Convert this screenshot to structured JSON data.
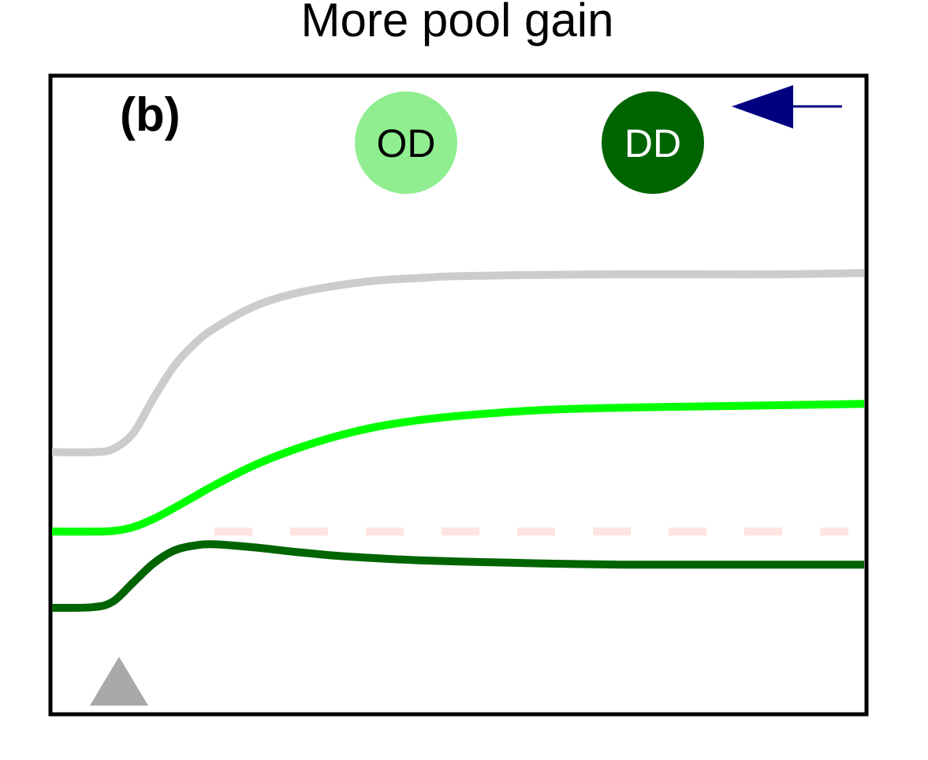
{
  "chart_data": {
    "type": "line",
    "title": "More pool gain",
    "panel_label": "(b)",
    "xlabel": "",
    "ylabel": "",
    "grid": false,
    "legend": "none",
    "badges": [
      {
        "label": "OD",
        "fill": "#90EE90",
        "text_color": "#000000"
      },
      {
        "label": "DD",
        "fill": "#006400",
        "text_color": "#ffffff"
      }
    ],
    "arrow": {
      "direction": "left",
      "color": "#000080"
    },
    "stimulus_marker": {
      "shape": "triangle",
      "color": "#A9A9A9",
      "x": 1.65
    },
    "xlim": [
      0,
      20
    ],
    "ylim": [
      0,
      10
    ],
    "reference_line": {
      "y": 2.85,
      "color": "#FFE4E1",
      "style": "dashed",
      "x_start": 4
    },
    "series": [
      {
        "color": "#CCCCCC",
        "x": [
          0,
          1,
          1.5,
          2,
          2.5,
          3,
          3.5,
          4,
          5,
          6,
          7,
          8,
          9,
          10,
          12,
          14,
          16,
          18,
          20
        ],
        "values": [
          4.1,
          4.1,
          4.15,
          4.4,
          4.95,
          5.45,
          5.8,
          6.05,
          6.4,
          6.6,
          6.72,
          6.8,
          6.84,
          6.87,
          6.89,
          6.9,
          6.9,
          6.9,
          6.92
        ]
      },
      {
        "color": "#00FF00",
        "x": [
          0,
          1,
          1.5,
          2,
          2.5,
          3,
          3.5,
          4,
          5,
          6,
          7,
          8,
          9,
          10,
          12,
          14,
          16,
          18,
          20
        ],
        "values": [
          2.85,
          2.85,
          2.86,
          2.92,
          3.05,
          3.22,
          3.4,
          3.58,
          3.9,
          4.15,
          4.35,
          4.5,
          4.6,
          4.67,
          4.76,
          4.8,
          4.82,
          4.84,
          4.86
        ]
      },
      {
        "color": "#006400",
        "x": [
          0,
          1,
          1.5,
          2,
          2.5,
          3,
          3.5,
          4,
          5,
          6,
          7,
          8,
          9,
          10,
          12,
          14,
          16,
          18,
          20
        ],
        "values": [
          1.65,
          1.66,
          1.75,
          2.05,
          2.35,
          2.55,
          2.63,
          2.65,
          2.6,
          2.53,
          2.47,
          2.43,
          2.4,
          2.38,
          2.35,
          2.33,
          2.33,
          2.33,
          2.33
        ]
      }
    ]
  }
}
